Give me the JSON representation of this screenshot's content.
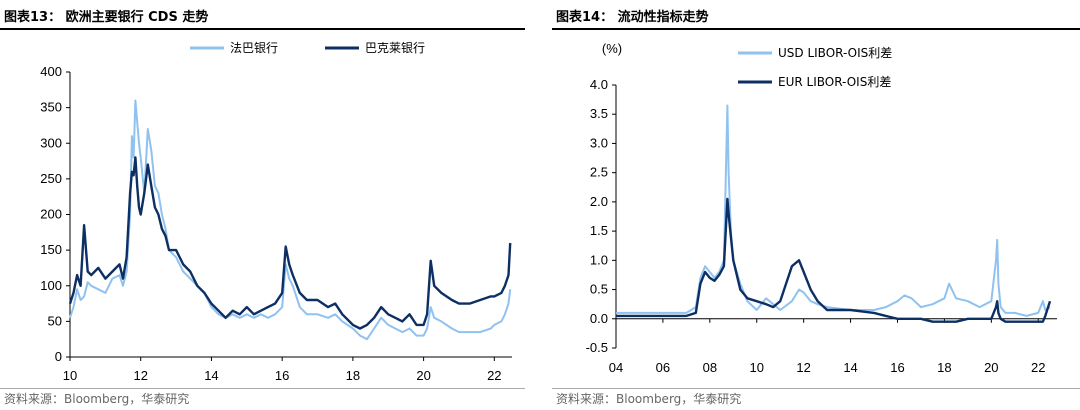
{
  "colors": {
    "light_blue": "#8fc2ef",
    "dark_navy": "#0d2f63"
  },
  "source_text": "资料来源：Bloomberg，华泰研究",
  "chart_data": [
    {
      "type": "line",
      "title": "图表13：  欧洲主要银行 CDS 走势",
      "xlabel": "",
      "ylabel": "",
      "x_ticks": [
        "10",
        "12",
        "14",
        "16",
        "18",
        "20",
        "22"
      ],
      "x_range": [
        2010,
        2022.5
      ],
      "y_ticks": [
        "0",
        "50",
        "100",
        "150",
        "200",
        "250",
        "300",
        "350",
        "400"
      ],
      "ylim": [
        0,
        400
      ],
      "grid": false,
      "legend_position": "top",
      "series": [
        {
          "name": "法巴银行",
          "color": "#8fc2ef",
          "x": [
            2010.0,
            2010.1,
            2010.2,
            2010.3,
            2010.4,
            2010.5,
            2010.6,
            2010.8,
            2011.0,
            2011.2,
            2011.4,
            2011.5,
            2011.6,
            2011.7,
            2011.75,
            2011.8,
            2011.85,
            2011.9,
            2011.95,
            2012.0,
            2012.1,
            2012.2,
            2012.3,
            2012.4,
            2012.5,
            2012.6,
            2012.7,
            2012.8,
            2013.0,
            2013.2,
            2013.4,
            2013.6,
            2013.8,
            2014.0,
            2014.2,
            2014.4,
            2014.6,
            2014.8,
            2015.0,
            2015.2,
            2015.4,
            2015.6,
            2015.8,
            2016.0,
            2016.1,
            2016.2,
            2016.3,
            2016.5,
            2016.7,
            2017.0,
            2017.3,
            2017.5,
            2017.7,
            2018.0,
            2018.2,
            2018.4,
            2018.6,
            2018.8,
            2019.0,
            2019.2,
            2019.4,
            2019.6,
            2019.8,
            2020.0,
            2020.1,
            2020.2,
            2020.3,
            2020.5,
            2020.8,
            2021.0,
            2021.3,
            2021.6,
            2021.9,
            2022.0,
            2022.2,
            2022.3,
            2022.4,
            2022.45
          ],
          "values": [
            55,
            70,
            95,
            80,
            85,
            105,
            100,
            95,
            90,
            110,
            115,
            100,
            120,
            200,
            310,
            280,
            360,
            330,
            300,
            280,
            230,
            320,
            290,
            240,
            230,
            200,
            180,
            150,
            140,
            120,
            110,
            100,
            90,
            70,
            60,
            55,
            60,
            55,
            60,
            55,
            60,
            55,
            60,
            70,
            130,
            110,
            100,
            70,
            60,
            60,
            55,
            60,
            50,
            40,
            30,
            25,
            40,
            55,
            45,
            40,
            35,
            40,
            30,
            30,
            40,
            70,
            55,
            50,
            40,
            35,
            35,
            35,
            40,
            45,
            50,
            60,
            75,
            95
          ]
        },
        {
          "name": "巴克莱银行",
          "color": "#0d2f63",
          "x": [
            2010.0,
            2010.1,
            2010.2,
            2010.3,
            2010.4,
            2010.5,
            2010.6,
            2010.8,
            2011.0,
            2011.2,
            2011.4,
            2011.5,
            2011.6,
            2011.7,
            2011.75,
            2011.8,
            2011.85,
            2011.9,
            2011.95,
            2012.0,
            2012.1,
            2012.2,
            2012.3,
            2012.4,
            2012.5,
            2012.6,
            2012.7,
            2012.8,
            2013.0,
            2013.2,
            2013.4,
            2013.6,
            2013.8,
            2014.0,
            2014.2,
            2014.4,
            2014.6,
            2014.8,
            2015.0,
            2015.2,
            2015.4,
            2015.6,
            2015.8,
            2016.0,
            2016.1,
            2016.2,
            2016.3,
            2016.5,
            2016.7,
            2017.0,
            2017.3,
            2017.5,
            2017.7,
            2018.0,
            2018.2,
            2018.4,
            2018.6,
            2018.8,
            2019.0,
            2019.2,
            2019.4,
            2019.6,
            2019.8,
            2020.0,
            2020.1,
            2020.2,
            2020.3,
            2020.5,
            2020.8,
            2021.0,
            2021.3,
            2021.6,
            2021.9,
            2022.0,
            2022.2,
            2022.3,
            2022.4,
            2022.45
          ],
          "values": [
            75,
            90,
            115,
            100,
            185,
            120,
            115,
            125,
            110,
            120,
            130,
            110,
            140,
            230,
            260,
            255,
            280,
            240,
            210,
            200,
            230,
            270,
            240,
            210,
            200,
            180,
            170,
            150,
            150,
            130,
            120,
            100,
            90,
            75,
            65,
            55,
            65,
            60,
            70,
            60,
            65,
            70,
            75,
            90,
            155,
            130,
            115,
            90,
            80,
            80,
            70,
            75,
            60,
            45,
            40,
            45,
            55,
            70,
            60,
            55,
            50,
            60,
            45,
            45,
            60,
            135,
            100,
            90,
            80,
            75,
            75,
            80,
            85,
            85,
            90,
            100,
            115,
            160
          ]
        }
      ]
    },
    {
      "type": "line",
      "title": "图表14：  流动性指标走势",
      "xlabel": "",
      "ylabel": "(%)",
      "x_ticks": [
        "04",
        "06",
        "08",
        "10",
        "12",
        "14",
        "16",
        "18",
        "20",
        "22"
      ],
      "x_range": [
        2004,
        2022.8
      ],
      "y_ticks": [
        "-0.5",
        "0.0",
        "0.5",
        "1.0",
        "1.5",
        "2.0",
        "2.5",
        "3.0",
        "3.5",
        "4.0"
      ],
      "ylim": [
        -0.5,
        4.0
      ],
      "grid": false,
      "legend_position": "top-left",
      "series": [
        {
          "name": "USD LIBOR-OIS利差",
          "color": "#8fc2ef",
          "x": [
            2004.0,
            2005.0,
            2006.0,
            2007.0,
            2007.4,
            2007.6,
            2007.8,
            2008.0,
            2008.2,
            2008.4,
            2008.6,
            2008.75,
            2008.8,
            2008.9,
            2009.0,
            2009.3,
            2009.6,
            2010.0,
            2010.4,
            2010.7,
            2011.0,
            2011.5,
            2011.8,
            2012.0,
            2012.3,
            2012.6,
            2013.0,
            2014.0,
            2015.0,
            2015.5,
            2016.0,
            2016.3,
            2016.6,
            2017.0,
            2017.5,
            2018.0,
            2018.2,
            2018.5,
            2019.0,
            2019.5,
            2020.0,
            2020.2,
            2020.25,
            2020.3,
            2020.4,
            2020.6,
            2021.0,
            2021.5,
            2022.0,
            2022.2,
            2022.3,
            2022.5
          ],
          "values": [
            0.1,
            0.1,
            0.1,
            0.1,
            0.2,
            0.7,
            0.9,
            0.8,
            0.7,
            0.8,
            1.0,
            3.65,
            2.5,
            1.5,
            1.0,
            0.6,
            0.3,
            0.15,
            0.35,
            0.25,
            0.15,
            0.3,
            0.5,
            0.45,
            0.3,
            0.25,
            0.2,
            0.15,
            0.15,
            0.2,
            0.3,
            0.4,
            0.35,
            0.2,
            0.25,
            0.35,
            0.6,
            0.35,
            0.3,
            0.2,
            0.3,
            1.0,
            1.35,
            0.6,
            0.2,
            0.1,
            0.1,
            0.05,
            0.1,
            0.3,
            0.15,
            0.2
          ]
        },
        {
          "name": "EUR LIBOR-OIS利差",
          "color": "#0d2f63",
          "x": [
            2004.0,
            2005.0,
            2006.0,
            2007.0,
            2007.4,
            2007.6,
            2007.8,
            2008.0,
            2008.2,
            2008.4,
            2008.6,
            2008.75,
            2008.8,
            2008.9,
            2009.0,
            2009.3,
            2009.6,
            2010.0,
            2010.4,
            2010.7,
            2011.0,
            2011.5,
            2011.8,
            2012.0,
            2012.3,
            2012.6,
            2013.0,
            2014.0,
            2015.0,
            2015.5,
            2016.0,
            2016.3,
            2016.6,
            2017.0,
            2017.5,
            2018.0,
            2018.2,
            2018.5,
            2019.0,
            2019.5,
            2020.0,
            2020.2,
            2020.25,
            2020.3,
            2020.4,
            2020.6,
            2021.0,
            2021.5,
            2022.0,
            2022.2,
            2022.3,
            2022.5
          ],
          "values": [
            0.05,
            0.05,
            0.05,
            0.05,
            0.1,
            0.6,
            0.8,
            0.7,
            0.65,
            0.75,
            0.9,
            2.05,
            1.8,
            1.4,
            1.0,
            0.5,
            0.35,
            0.3,
            0.25,
            0.2,
            0.3,
            0.9,
            1.0,
            0.8,
            0.5,
            0.3,
            0.15,
            0.15,
            0.1,
            0.05,
            0.0,
            0.0,
            0.0,
            0.0,
            -0.05,
            -0.05,
            -0.05,
            -0.05,
            0.0,
            0.0,
            0.0,
            0.2,
            0.3,
            0.1,
            0.0,
            -0.05,
            -0.05,
            -0.05,
            -0.05,
            -0.05,
            0.05,
            0.3
          ]
        }
      ]
    }
  ]
}
